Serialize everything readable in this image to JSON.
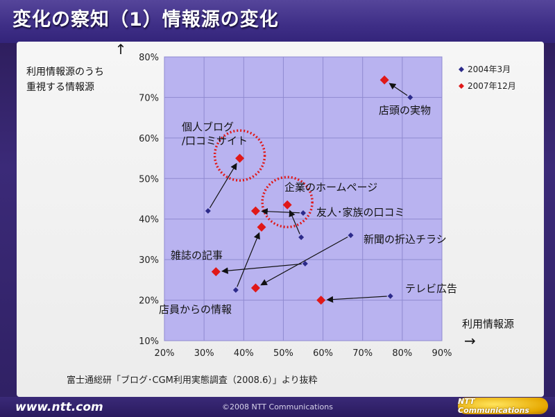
{
  "slide": {
    "title": "変化の察知（1）情報源の変化",
    "footer_url": "www.ntt.com",
    "copyright": "©2008 NTT Communications",
    "logo_text": "NTT Communications",
    "source_note": "富士通総研「ブログ･CGM利用実態調査（2008.6）」より抜粋"
  },
  "chart_data": {
    "type": "scatter",
    "ylabel": "利用情報源のうち\n重視する情報源",
    "xlabel": "利用情報源",
    "xlim": [
      20,
      90
    ],
    "ylim": [
      10,
      80
    ],
    "xticks": [
      "20%",
      "30%",
      "40%",
      "50%",
      "60%",
      "70%",
      "80%",
      "90%"
    ],
    "yticks": [
      "10%",
      "20%",
      "30%",
      "40%",
      "50%",
      "60%",
      "70%",
      "80%"
    ],
    "grid": true,
    "legend_position": "top-right",
    "series": [
      {
        "name": "2004年3月",
        "color": "#2c2a8a",
        "marker": "small-diamond"
      },
      {
        "name": "2007年12月",
        "color": "#e01818",
        "marker": "diamond"
      }
    ],
    "points": [
      {
        "label": "店頭の実物",
        "p2004": [
          82,
          70
        ],
        "p2007": [
          75.5,
          74.3
        ]
      },
      {
        "label": "個人ブログ\n/口コミサイト",
        "p2004": [
          31,
          42
        ],
        "p2007": [
          39,
          55
        ]
      },
      {
        "label": "企業のホームページ",
        "p2004": [
          54.5,
          35.5
        ],
        "p2007": [
          51,
          43.5
        ]
      },
      {
        "label": "友人･家族の口コミ",
        "p2004": [
          55,
          41.5
        ],
        "p2007": [
          43,
          42
        ]
      },
      {
        "label": "雑誌の記事",
        "p2004": [
          55.5,
          29
        ],
        "p2007": [
          33,
          27
        ]
      },
      {
        "label": "店員からの情報",
        "p2004": [
          38,
          22.5
        ],
        "p2007": [
          44.5,
          38
        ]
      },
      {
        "label": "新聞の折込チラシ",
        "p2004": [
          67,
          36
        ],
        "p2007": [
          43,
          23
        ]
      },
      {
        "label": "テレビ広告",
        "p2004": [
          77,
          21
        ],
        "p2007": [
          59.5,
          20
        ]
      }
    ],
    "highlighted": [
      "個人ブログ\n/口コミサイト",
      "企業のホームページ"
    ]
  }
}
